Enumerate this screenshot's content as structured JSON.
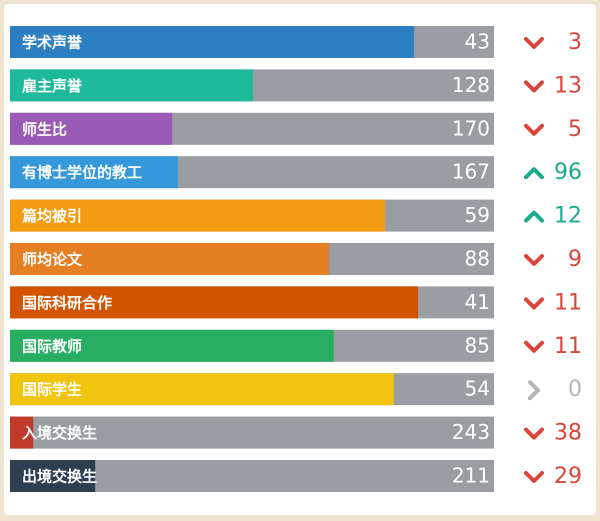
{
  "chart_data": {
    "type": "bar",
    "orientation": "horizontal",
    "categories": [
      "学术声誉",
      "雇主声誉",
      "师生比",
      "有博士学位的教工",
      "篇均被引",
      "师均论文",
      "国际科研合作",
      "国际教师",
      "国际学生",
      "入境交换生",
      "出境交换生"
    ],
    "values": [
      83.5,
      50.2,
      33.5,
      34.7,
      77.5,
      65.9,
      84.3,
      66.9,
      79.3,
      4.8,
      17.6
    ],
    "colors": [
      "#2e7fc2",
      "#1db99a",
      "#9b59b6",
      "#3498db",
      "#f39c12",
      "#e67e22",
      "#d35400",
      "#27ae60",
      "#f1c40f",
      "#c0392b",
      "#2c3e50"
    ],
    "track_color": "#9a9ea3",
    "xlim": [
      0,
      100
    ],
    "ranks": [
      43,
      128,
      170,
      167,
      59,
      88,
      41,
      85,
      54,
      243,
      211
    ],
    "rank_changes": [
      3,
      13,
      5,
      96,
      12,
      9,
      11,
      11,
      0,
      38,
      29
    ],
    "change_directions": [
      "down",
      "down",
      "down",
      "up",
      "up",
      "down",
      "down",
      "down",
      "flat",
      "down",
      "down"
    ],
    "direction_colors": {
      "down": "#d9453a",
      "up": "#1aaa8c",
      "flat": "#b5b5b5"
    }
  }
}
